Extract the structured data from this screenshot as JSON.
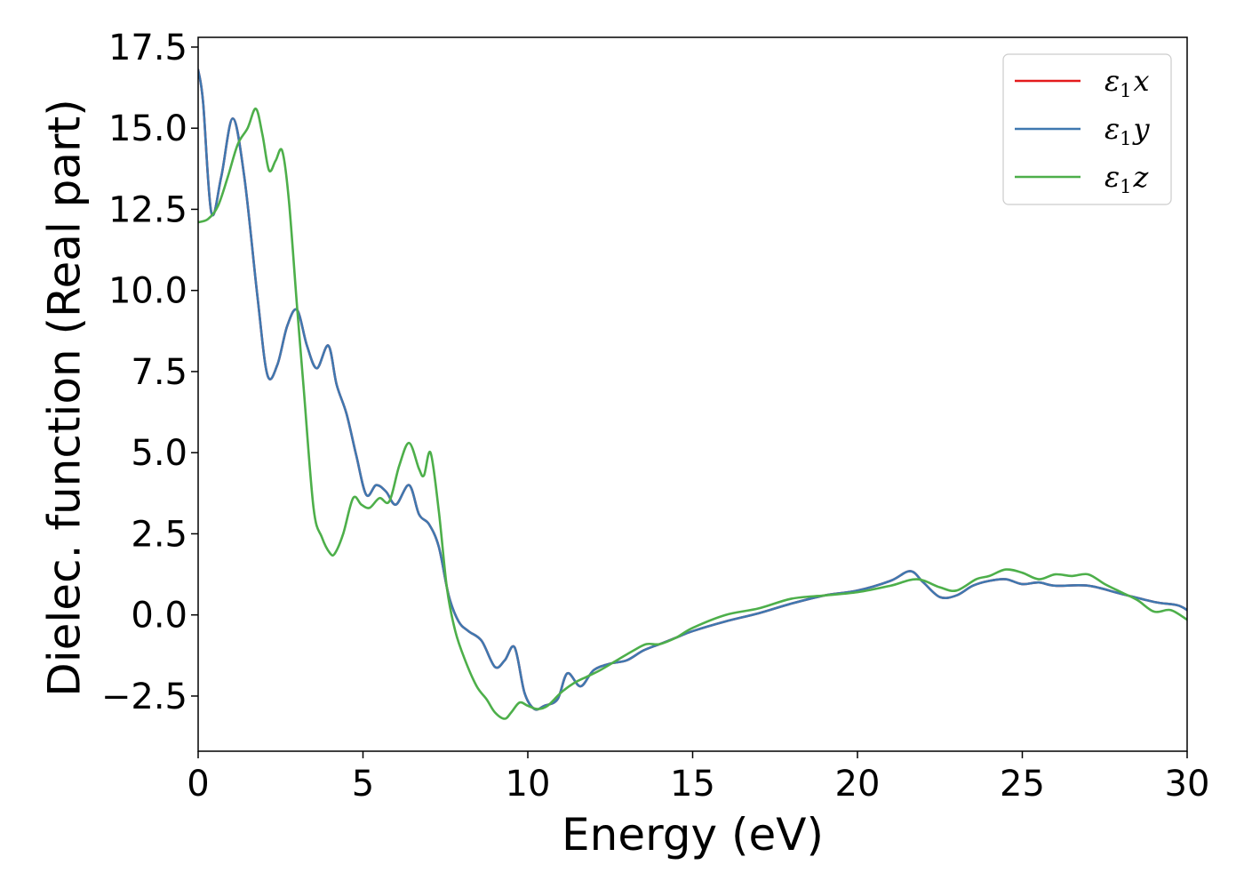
{
  "chart_data": {
    "type": "line",
    "xlabel": "Energy (eV)",
    "ylabel": "Dielec. function (Real part)",
    "xlim": [
      0,
      30
    ],
    "ylim": [
      -4.2,
      17.8
    ],
    "xticks": [
      0,
      5,
      10,
      15,
      20,
      25,
      30
    ],
    "xtick_labels": [
      "0",
      "5",
      "10",
      "15",
      "20",
      "25",
      "30"
    ],
    "yticks": [
      -2.5,
      0,
      2.5,
      5,
      7.5,
      10,
      12.5,
      15,
      17.5
    ],
    "ytick_labels": [
      "−2.5",
      "0.0",
      "2.5",
      "5.0",
      "7.5",
      "10.0",
      "12.5",
      "15.0",
      "17.5"
    ],
    "grid": false,
    "legend_position": "top-right",
    "series": [
      {
        "name": "ε1x",
        "legend_main": "ε",
        "legend_sub": "1",
        "legend_var": "x",
        "color": "#e41a1c",
        "x": [
          0,
          0.15,
          0.4,
          0.7,
          1.05,
          1.4,
          1.8,
          2.1,
          2.4,
          2.7,
          3.0,
          3.3,
          3.6,
          3.95,
          4.2,
          4.5,
          4.8,
          5.1,
          5.4,
          5.7,
          6.0,
          6.4,
          6.7,
          7.0,
          7.3,
          7.6,
          7.9,
          8.2,
          8.6,
          9.0,
          9.3,
          9.6,
          9.9,
          10.2,
          10.5,
          10.9,
          11.2,
          11.6,
          12.0,
          12.5,
          13.0,
          13.5,
          14.0,
          14.5,
          15.0,
          16.0,
          17.0,
          18.0,
          19.0,
          20.0,
          21.0,
          21.6,
          22.0,
          22.5,
          23.0,
          23.5,
          24.0,
          24.5,
          25.0,
          25.5,
          26.0,
          27.0,
          28.0,
          29.0,
          29.7,
          30.0
        ],
        "values": [
          16.8,
          15.8,
          12.4,
          13.5,
          15.3,
          13.5,
          9.8,
          7.4,
          7.7,
          8.9,
          9.4,
          8.3,
          7.6,
          8.3,
          7.1,
          6.2,
          4.9,
          3.7,
          4.0,
          3.8,
          3.4,
          4.0,
          3.1,
          2.8,
          2.1,
          0.6,
          -0.2,
          -0.5,
          -0.8,
          -1.6,
          -1.4,
          -1.0,
          -2.4,
          -2.9,
          -2.8,
          -2.6,
          -1.8,
          -2.2,
          -1.7,
          -1.5,
          -1.4,
          -1.1,
          -0.9,
          -0.7,
          -0.5,
          -0.2,
          0.05,
          0.35,
          0.6,
          0.75,
          1.05,
          1.35,
          1.0,
          0.55,
          0.6,
          0.9,
          1.05,
          1.1,
          0.95,
          1.0,
          0.9,
          0.9,
          0.65,
          0.4,
          0.3,
          0.15
        ]
      },
      {
        "name": "ε1y",
        "legend_main": "ε",
        "legend_sub": "1",
        "legend_var": "y",
        "color": "#3f78b0",
        "x": [
          0,
          0.15,
          0.4,
          0.7,
          1.05,
          1.4,
          1.8,
          2.1,
          2.4,
          2.7,
          3.0,
          3.3,
          3.6,
          3.95,
          4.2,
          4.5,
          4.8,
          5.1,
          5.4,
          5.7,
          6.0,
          6.4,
          6.7,
          7.0,
          7.3,
          7.6,
          7.9,
          8.2,
          8.6,
          9.0,
          9.3,
          9.6,
          9.9,
          10.2,
          10.5,
          10.9,
          11.2,
          11.6,
          12.0,
          12.5,
          13.0,
          13.5,
          14.0,
          14.5,
          15.0,
          16.0,
          17.0,
          18.0,
          19.0,
          20.0,
          21.0,
          21.6,
          22.0,
          22.5,
          23.0,
          23.5,
          24.0,
          24.5,
          25.0,
          25.5,
          26.0,
          27.0,
          28.0,
          29.0,
          29.7,
          30.0
        ],
        "values": [
          16.8,
          15.8,
          12.4,
          13.5,
          15.3,
          13.5,
          9.8,
          7.4,
          7.7,
          8.9,
          9.4,
          8.3,
          7.6,
          8.3,
          7.1,
          6.2,
          4.9,
          3.7,
          4.0,
          3.8,
          3.4,
          4.0,
          3.1,
          2.8,
          2.1,
          0.6,
          -0.2,
          -0.5,
          -0.8,
          -1.6,
          -1.4,
          -1.0,
          -2.4,
          -2.9,
          -2.8,
          -2.6,
          -1.8,
          -2.2,
          -1.7,
          -1.5,
          -1.4,
          -1.1,
          -0.9,
          -0.7,
          -0.5,
          -0.2,
          0.05,
          0.35,
          0.6,
          0.75,
          1.05,
          1.35,
          1.0,
          0.55,
          0.6,
          0.9,
          1.05,
          1.1,
          0.95,
          1.0,
          0.9,
          0.9,
          0.65,
          0.4,
          0.3,
          0.15
        ]
      },
      {
        "name": "ε1z",
        "legend_main": "ε",
        "legend_sub": "1",
        "legend_var": "z",
        "color": "#4daf4a",
        "x": [
          0,
          0.3,
          0.6,
          0.9,
          1.2,
          1.5,
          1.75,
          1.95,
          2.15,
          2.35,
          2.55,
          2.75,
          3.0,
          3.2,
          3.5,
          3.75,
          4.0,
          4.15,
          4.4,
          4.7,
          4.95,
          5.2,
          5.5,
          5.8,
          6.1,
          6.4,
          6.7,
          6.85,
          7.05,
          7.3,
          7.55,
          7.8,
          8.1,
          8.45,
          8.75,
          9.0,
          9.3,
          9.5,
          9.75,
          10.0,
          10.3,
          10.6,
          11.0,
          11.4,
          11.8,
          12.2,
          12.7,
          13.2,
          13.6,
          14.0,
          14.5,
          15.0,
          16.0,
          17.0,
          18.0,
          19.0,
          20.0,
          21.0,
          21.8,
          22.5,
          23.0,
          23.6,
          24.0,
          24.5,
          25.0,
          25.5,
          26.0,
          26.5,
          27.0,
          27.5,
          28.0,
          28.5,
          29.0,
          29.5,
          30.0
        ],
        "values": [
          12.1,
          12.2,
          12.6,
          13.5,
          14.5,
          15.0,
          15.6,
          14.8,
          13.7,
          14.0,
          14.3,
          12.8,
          9.5,
          7.0,
          3.3,
          2.4,
          1.9,
          1.9,
          2.5,
          3.6,
          3.4,
          3.3,
          3.6,
          3.5,
          4.6,
          5.3,
          4.5,
          4.3,
          5.0,
          3.2,
          0.8,
          -0.5,
          -1.4,
          -2.2,
          -2.6,
          -3.0,
          -3.2,
          -3.0,
          -2.7,
          -2.8,
          -2.9,
          -2.8,
          -2.4,
          -2.1,
          -1.9,
          -1.7,
          -1.4,
          -1.1,
          -0.9,
          -0.9,
          -0.7,
          -0.4,
          0.0,
          0.2,
          0.5,
          0.6,
          0.7,
          0.9,
          1.1,
          0.85,
          0.75,
          1.1,
          1.2,
          1.4,
          1.3,
          1.1,
          1.25,
          1.2,
          1.25,
          0.95,
          0.7,
          0.45,
          0.1,
          0.15,
          -0.15
        ]
      }
    ]
  }
}
